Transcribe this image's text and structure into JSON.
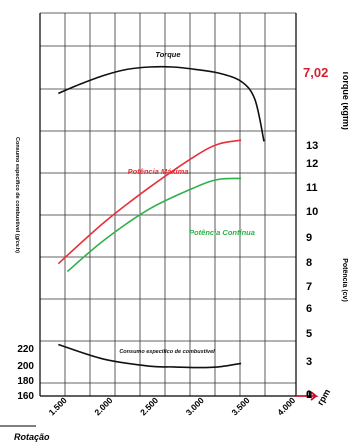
{
  "chart_data": {
    "type": "line",
    "title": "",
    "xlabel": "Rotação",
    "x_unit": "rpm",
    "x_ticks": [
      "1.500",
      "2.000",
      "2.500",
      "3.000",
      "3.500",
      "4.000"
    ],
    "x_range": [
      1300,
      4100
    ],
    "left_axis": {
      "label": "Consumo especifico de combustivel (g/cv.h)",
      "ticks": [
        "220",
        "200",
        "180",
        "160"
      ],
      "range": [
        160,
        230
      ]
    },
    "right_axis_power": {
      "label": "Potência (cv)",
      "ticks": [
        "13",
        "12",
        "11",
        "10",
        "9",
        "8",
        "7",
        "6",
        "5",
        "3",
        "1",
        "0"
      ],
      "range": [
        0,
        13
      ]
    },
    "right_axis_torque": {
      "label": "Torque (kgfm)",
      "value_label": "7,02"
    },
    "series": [
      {
        "name": "Torque",
        "color": "#111111",
        "x": [
          1500,
          1750,
          2000,
          2250,
          2500,
          2750,
          3000,
          3250,
          3500,
          3650,
          3750
        ],
        "y": [
          6.8,
          6.88,
          6.95,
          7.0,
          7.02,
          7.02,
          7.0,
          6.97,
          6.9,
          6.75,
          6.4
        ],
        "axis": "torque"
      },
      {
        "name": "Potência Máxima",
        "color": "#e8303a",
        "x": [
          1500,
          2000,
          2500,
          3000,
          3250,
          3500
        ],
        "y": [
          6.7,
          8.8,
          10.6,
          12.2,
          12.8,
          13.0
        ],
        "axis": "power"
      },
      {
        "name": "Potência Contínua",
        "color": "#2fb04a",
        "x": [
          1600,
          2000,
          2500,
          3000,
          3250,
          3500
        ],
        "y": [
          6.3,
          7.9,
          9.5,
          10.6,
          11.0,
          11.05
        ],
        "axis": "power"
      },
      {
        "name": "Consumo específico de combustível",
        "color": "#111111",
        "x": [
          1500,
          2000,
          2500,
          2750,
          3000,
          3250,
          3500
        ],
        "y": [
          215,
          194,
          184,
          183,
          182,
          183,
          188
        ],
        "axis": "consumption"
      }
    ],
    "grid": true
  }
}
